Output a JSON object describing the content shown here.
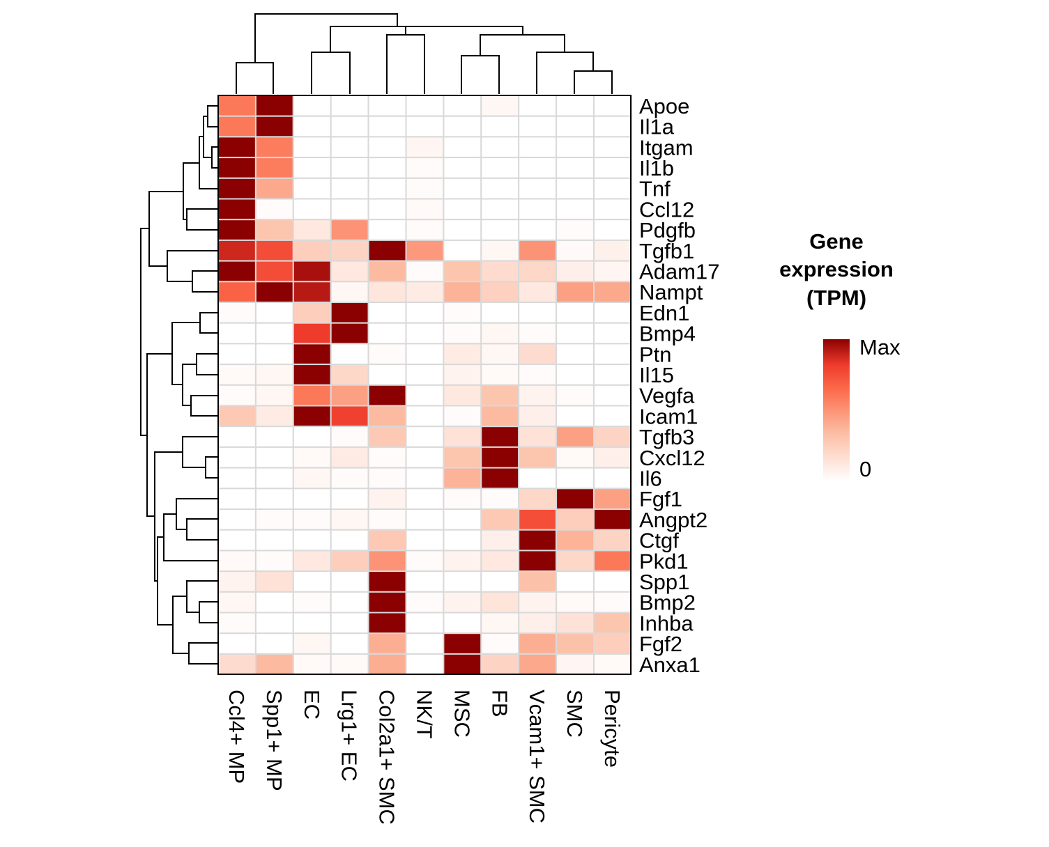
{
  "chart_data": {
    "type": "heatmap",
    "rows": [
      "Apoe",
      "Il1a",
      "Itgam",
      "Il1b",
      "Tnf",
      "Ccl12",
      "Pdgfb",
      "Tgfb1",
      "Adam17",
      "Nampt",
      "Edn1",
      "Bmp4",
      "Ptn",
      "Il15",
      "Vegfa",
      "Icam1",
      "Tgfb3",
      "Cxcl12",
      "Il6",
      "Fgf1",
      "Angpt2",
      "Ctgf",
      "Pkd1",
      "Spp1",
      "Bmp2",
      "Inhba",
      "Fgf2",
      "Anxa1"
    ],
    "columns": [
      "Ccl4+ MP",
      "Spp1+ MP",
      "EC",
      "Lrg1+ EC",
      "Col2a1+ SMC",
      "NK/T",
      "MSC",
      "FB",
      "Vcam1+ SMC",
      "SMC",
      "Pericyte"
    ],
    "values": [
      [
        0.6,
        1.0,
        0.0,
        0.0,
        0.0,
        0.0,
        0.0,
        0.04,
        0.0,
        0.0,
        0.0
      ],
      [
        0.6,
        1.0,
        0.0,
        0.0,
        0.0,
        0.0,
        0.0,
        0.0,
        0.0,
        0.0,
        0.0
      ],
      [
        1.0,
        0.58,
        0.0,
        0.0,
        0.0,
        0.05,
        0.0,
        0.0,
        0.0,
        0.0,
        0.0
      ],
      [
        1.0,
        0.58,
        0.0,
        0.0,
        0.0,
        0.02,
        0.0,
        0.0,
        0.0,
        0.0,
        0.0
      ],
      [
        1.0,
        0.42,
        0.0,
        0.0,
        0.0,
        0.02,
        0.0,
        0.0,
        0.0,
        0.0,
        0.0
      ],
      [
        1.0,
        0.02,
        0.0,
        0.0,
        0.0,
        0.03,
        0.0,
        0.0,
        0.0,
        0.0,
        0.0
      ],
      [
        1.0,
        0.3,
        0.12,
        0.5,
        0.0,
        0.02,
        0.0,
        0.0,
        0.0,
        0.02,
        0.0
      ],
      [
        0.88,
        0.76,
        0.25,
        0.22,
        1.0,
        0.48,
        0.0,
        0.04,
        0.5,
        0.03,
        0.07
      ],
      [
        1.0,
        0.76,
        0.95,
        0.12,
        0.35,
        0.02,
        0.3,
        0.18,
        0.2,
        0.08,
        0.05
      ],
      [
        0.68,
        1.0,
        0.92,
        0.04,
        0.13,
        0.1,
        0.38,
        0.24,
        0.12,
        0.45,
        0.42
      ],
      [
        0.02,
        0.0,
        0.25,
        1.0,
        0.0,
        0.0,
        0.02,
        0.0,
        0.0,
        0.0,
        0.0
      ],
      [
        0.0,
        0.0,
        0.82,
        1.0,
        0.0,
        0.0,
        0.02,
        0.04,
        0.02,
        0.0,
        0.0
      ],
      [
        0.0,
        0.0,
        1.0,
        0.0,
        0.02,
        0.0,
        0.1,
        0.04,
        0.18,
        0.0,
        0.0
      ],
      [
        0.03,
        0.04,
        1.0,
        0.2,
        0.0,
        0.0,
        0.06,
        0.03,
        0.02,
        0.0,
        0.0
      ],
      [
        0.02,
        0.04,
        0.6,
        0.45,
        1.0,
        0.0,
        0.12,
        0.3,
        0.06,
        0.02,
        0.0
      ],
      [
        0.28,
        0.1,
        1.0,
        0.8,
        0.35,
        0.0,
        0.02,
        0.35,
        0.08,
        0.0,
        0.0
      ],
      [
        0.0,
        0.0,
        0.0,
        0.02,
        0.28,
        0.0,
        0.15,
        1.0,
        0.15,
        0.45,
        0.22
      ],
      [
        0.0,
        0.0,
        0.03,
        0.1,
        0.02,
        0.0,
        0.3,
        1.0,
        0.3,
        0.03,
        0.08
      ],
      [
        0.0,
        0.0,
        0.04,
        0.02,
        0.02,
        0.0,
        0.38,
        1.0,
        0.0,
        0.0,
        0.0
      ],
      [
        0.0,
        0.0,
        0.0,
        0.0,
        0.06,
        0.0,
        0.02,
        0.02,
        0.2,
        1.0,
        0.45
      ],
      [
        0.0,
        0.02,
        0.02,
        0.04,
        0.02,
        0.0,
        0.0,
        0.28,
        0.75,
        0.25,
        1.0
      ],
      [
        0.0,
        0.0,
        0.0,
        0.0,
        0.28,
        0.0,
        0.0,
        0.08,
        1.0,
        0.38,
        0.22
      ],
      [
        0.03,
        0.02,
        0.12,
        0.25,
        0.5,
        0.02,
        0.06,
        0.12,
        1.0,
        0.2,
        0.6
      ],
      [
        0.06,
        0.15,
        0.0,
        0.0,
        1.0,
        0.0,
        0.0,
        0.0,
        0.32,
        0.0,
        0.0
      ],
      [
        0.04,
        0.0,
        0.02,
        0.0,
        1.0,
        0.02,
        0.06,
        0.14,
        0.06,
        0.03,
        0.02
      ],
      [
        0.02,
        0.0,
        0.0,
        0.0,
        1.0,
        0.0,
        0.0,
        0.04,
        0.08,
        0.15,
        0.3
      ],
      [
        0.0,
        0.0,
        0.04,
        0.0,
        0.4,
        0.0,
        1.0,
        0.02,
        0.4,
        0.32,
        0.25
      ],
      [
        0.18,
        0.35,
        0.03,
        0.03,
        0.4,
        0.0,
        1.0,
        0.22,
        0.42,
        0.05,
        0.03
      ]
    ],
    "value_scale": "relative 0 (min) to 1 (max) per gene",
    "colormap": [
      "#ffffff",
      "#fcbba1",
      "#fb6a4a",
      "#ef3b2c",
      "#8b0000"
    ],
    "legend": {
      "title_lines": [
        "Gene",
        "expression",
        "(TPM)"
      ],
      "max_label": "Max",
      "min_label": "0",
      "placement": "right"
    },
    "row_dendrogram": "left",
    "column_dendrogram": "top"
  }
}
